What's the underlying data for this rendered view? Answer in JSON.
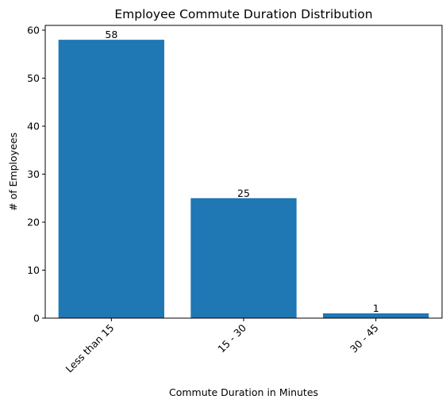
{
  "chart_data": {
    "type": "bar",
    "title": "Employee Commute Duration Distribution",
    "xlabel": "Commute Duration in Minutes",
    "ylabel": "# of Employees",
    "categories": [
      "Less than 15",
      "15 - 30",
      "30 - 45"
    ],
    "values": [
      58,
      25,
      1
    ],
    "ylim": [
      0,
      61
    ],
    "yticks": [
      0,
      10,
      20,
      30,
      40,
      50,
      60
    ],
    "bar_color": "#1f77b4",
    "grid": false,
    "legend": "none",
    "xtick_rotation_deg": 45
  }
}
